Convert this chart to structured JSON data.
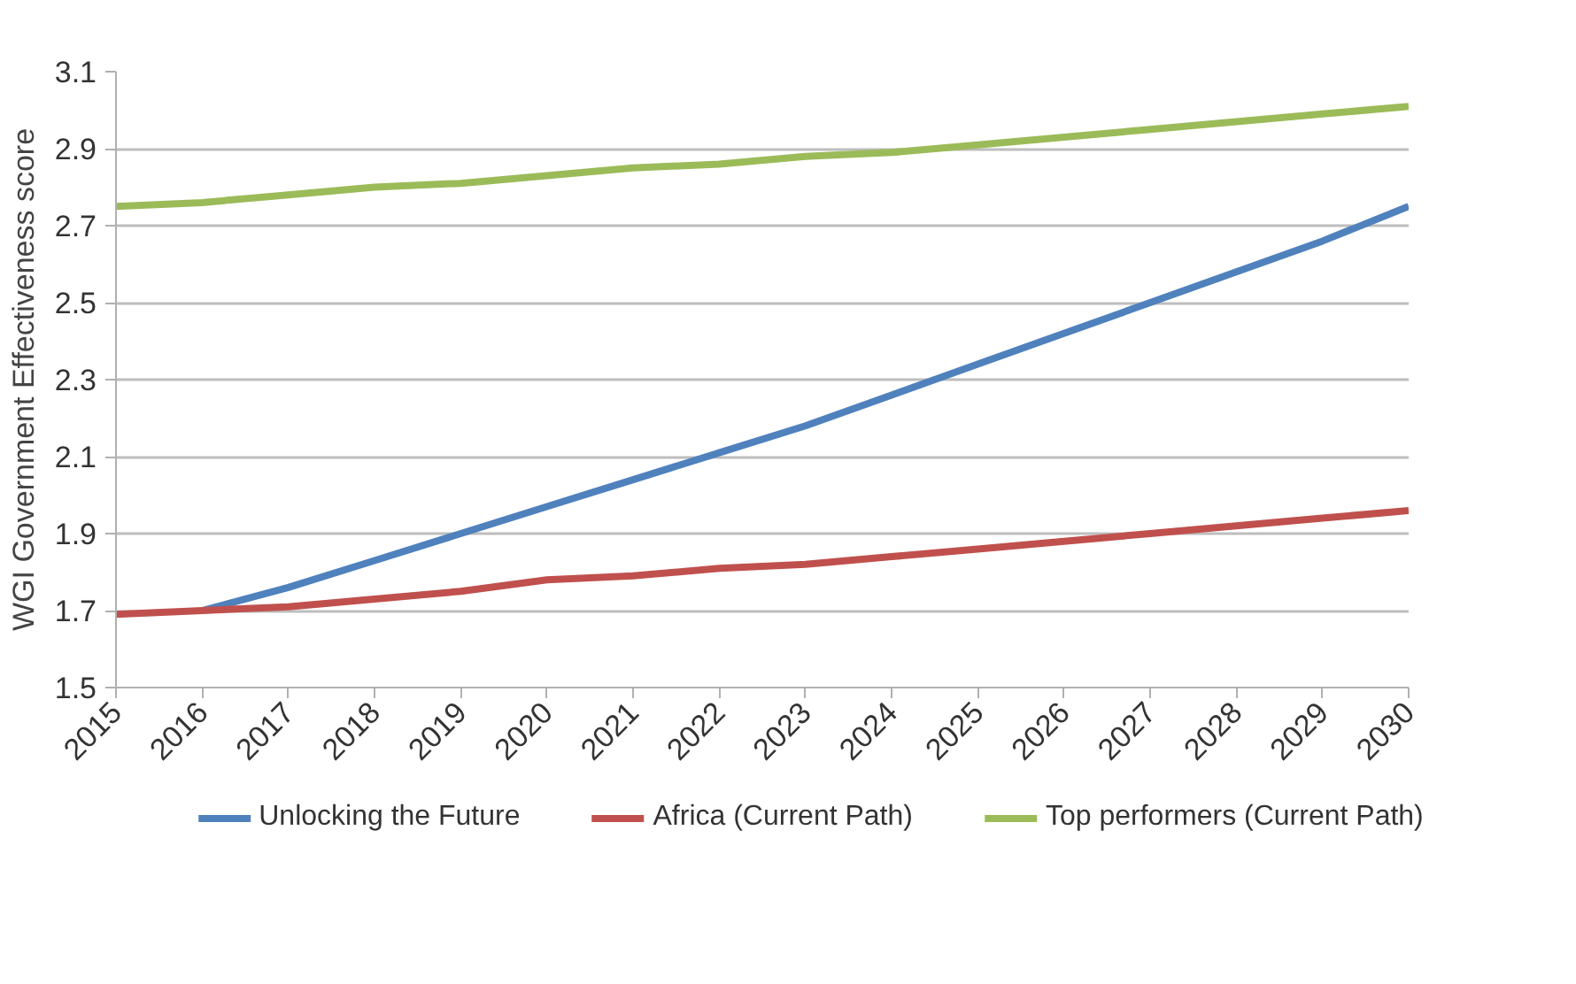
{
  "chart_data": {
    "type": "line",
    "ylabel": "WGI Government Effectiveness score",
    "x": [
      2015,
      2016,
      2017,
      2018,
      2019,
      2020,
      2021,
      2022,
      2023,
      2024,
      2025,
      2026,
      2027,
      2028,
      2029,
      2030
    ],
    "series": [
      {
        "name": "Unlocking the Future",
        "color": "#4f81bd",
        "values": [
          null,
          1.7,
          1.76,
          1.83,
          1.9,
          1.97,
          2.04,
          2.11,
          2.18,
          2.26,
          2.34,
          2.42,
          2.5,
          2.58,
          2.66,
          2.75
        ]
      },
      {
        "name": "Africa (Current Path)",
        "color": "#c0504d",
        "values": [
          1.69,
          1.7,
          1.71,
          1.73,
          1.75,
          1.78,
          1.79,
          1.81,
          1.82,
          1.84,
          1.86,
          1.88,
          1.9,
          1.92,
          1.94,
          1.96
        ]
      },
      {
        "name": "Top performers (Current Path)",
        "color": "#9bbb59",
        "values": [
          2.75,
          2.76,
          2.78,
          2.8,
          2.81,
          2.83,
          2.85,
          2.86,
          2.88,
          2.89,
          2.91,
          2.93,
          2.95,
          2.97,
          2.99,
          3.01
        ]
      }
    ],
    "xlim": [
      2015,
      2030
    ],
    "xticks": [
      2015,
      2016,
      2017,
      2018,
      2019,
      2020,
      2021,
      2022,
      2023,
      2024,
      2025,
      2026,
      2027,
      2028,
      2029,
      2030
    ],
    "ylim": [
      1.5,
      3.1
    ],
    "yticks": [
      1.5,
      1.7,
      1.9,
      2.1,
      2.3,
      2.5,
      2.7,
      2.9,
      3.1
    ],
    "grid": "y",
    "legend": "bottom",
    "marker": "none",
    "line_style": "solid"
  }
}
